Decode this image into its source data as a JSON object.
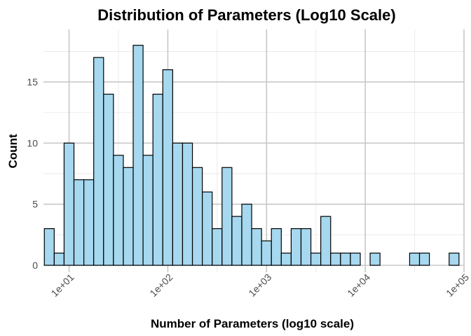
{
  "chart_data": {
    "type": "bar",
    "title": "Distribution of Parameters (Log10 Scale)",
    "xlabel": "Number of Parameters (log10 scale)",
    "ylabel": "Count",
    "x_scale": "log10",
    "x_bin_log10_width": 0.1,
    "x_first_bin_center": 6.3,
    "xlim": [
      5.5,
      100000
    ],
    "ylim": [
      0,
      19.3
    ],
    "x_ticks": [
      10,
      100,
      1000,
      10000,
      100000
    ],
    "x_tick_labels": [
      "1e+01",
      "1e+02",
      "1e+03",
      "1e+04",
      "1e+05"
    ],
    "y_ticks": [
      0,
      5,
      10,
      15
    ],
    "y_tick_labels": [
      "0",
      "5",
      "10",
      "15"
    ],
    "values": [
      3,
      1,
      10,
      7,
      7,
      17,
      14,
      9,
      8,
      18,
      9,
      14,
      16,
      10,
      10,
      8,
      6,
      3,
      8,
      4,
      5,
      3,
      2,
      3,
      1,
      3,
      3,
      1,
      4,
      1,
      1,
      1,
      0,
      1,
      0,
      0,
      0,
      1,
      1,
      0,
      0,
      1
    ],
    "bar_fill": "#a6d8ef",
    "bar_outline": "#000000",
    "grid": true,
    "legend": "none"
  }
}
